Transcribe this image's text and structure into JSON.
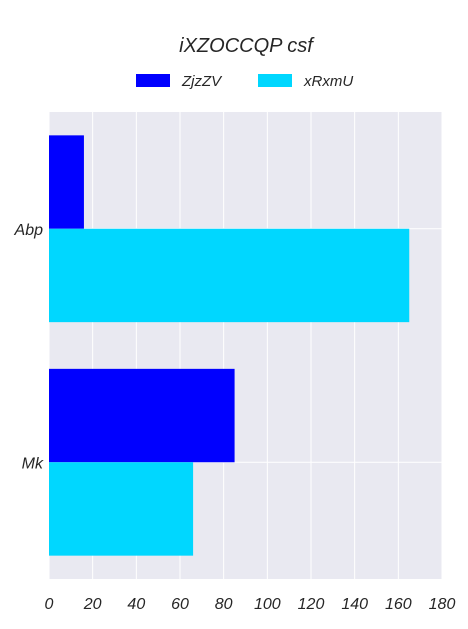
{
  "chart_data": {
    "type": "bar",
    "orientation": "horizontal",
    "title": "iXZOCCQP csf",
    "xlabel": "",
    "ylabel": "",
    "categories": [
      "Abp",
      "Mk"
    ],
    "series": [
      {
        "name": "ZjzZV",
        "values": [
          16,
          85
        ],
        "color": "#0000ff"
      },
      {
        "name": "xRxmU",
        "values": [
          165,
          66
        ],
        "color": "#00d7ff"
      }
    ],
    "xlim": [
      0,
      180
    ],
    "xticks": [
      0,
      20,
      40,
      60,
      80,
      100,
      120,
      140,
      160,
      180
    ],
    "grid": true,
    "legend_position": "top-center",
    "background": "#e9e9f1"
  }
}
